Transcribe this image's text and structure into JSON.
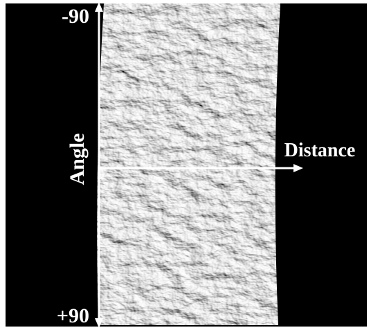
{
  "labels": {
    "top": "-90",
    "bottom": "+90",
    "vertical_axis": "Angle",
    "horizontal_axis": "Distance"
  }
}
